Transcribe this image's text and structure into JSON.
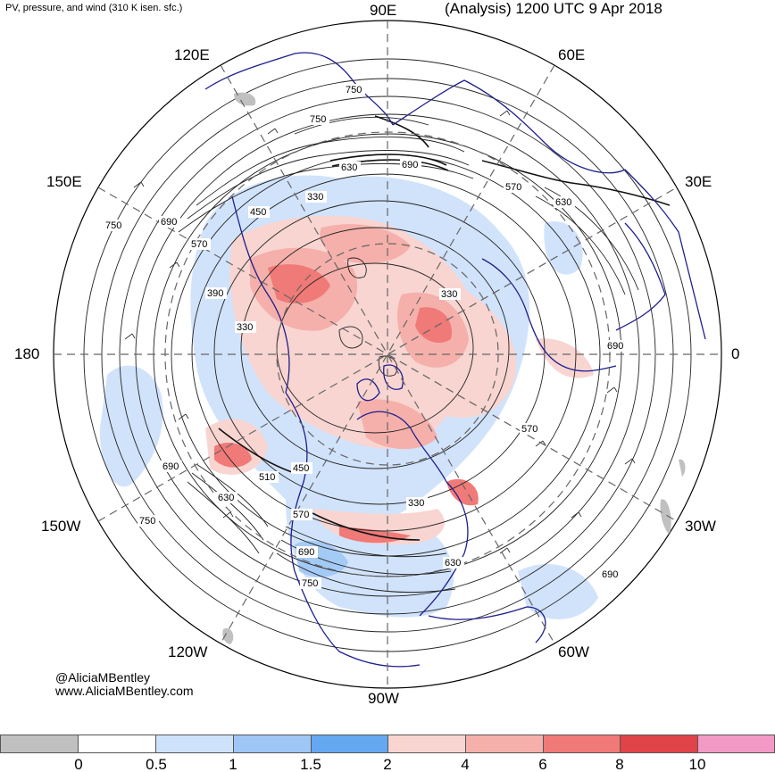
{
  "header": {
    "left_title": "PV, pressure, and wind (310 K isen. sfc.)",
    "right_title": "(Analysis) 1200 UTC 9 Apr 2018"
  },
  "longitude_labels": {
    "n90e": "90E",
    "n120e": "120E",
    "n60e": "60E",
    "n150e": "150E",
    "n30e": "30E",
    "n180": "180",
    "n0": "0",
    "n150w": "150W",
    "n30w": "30W",
    "n120w": "120W",
    "n60w": "60W",
    "n90w": "90W"
  },
  "contour_labels": [
    "750",
    "750",
    "630",
    "690",
    "570",
    "630",
    "330",
    "450",
    "690",
    "750",
    "570",
    "390",
    "330",
    "330",
    "690",
    "690",
    "510",
    "630",
    "750",
    "450",
    "570",
    "570",
    "690",
    "750",
    "630",
    "330",
    "690"
  ],
  "credits": {
    "handle": "@AliciaMBentley",
    "website": "www.AliciaMBentley.com"
  },
  "colorbar": {
    "colors": [
      "#c0c0c0",
      "#ffffff",
      "#cfe2fb",
      "#9fc6f5",
      "#64a8f2",
      "#f8d5d1",
      "#f5b0ab",
      "#f07a78",
      "#e04448",
      "#f29ac5"
    ],
    "ticks": [
      "0",
      "0.5",
      "1",
      "1.5",
      "2",
      "4",
      "6",
      "8",
      "10"
    ]
  },
  "colors": {
    "coastline": "#1e1e8c",
    "contour": "#222222",
    "grid": "#666666"
  }
}
